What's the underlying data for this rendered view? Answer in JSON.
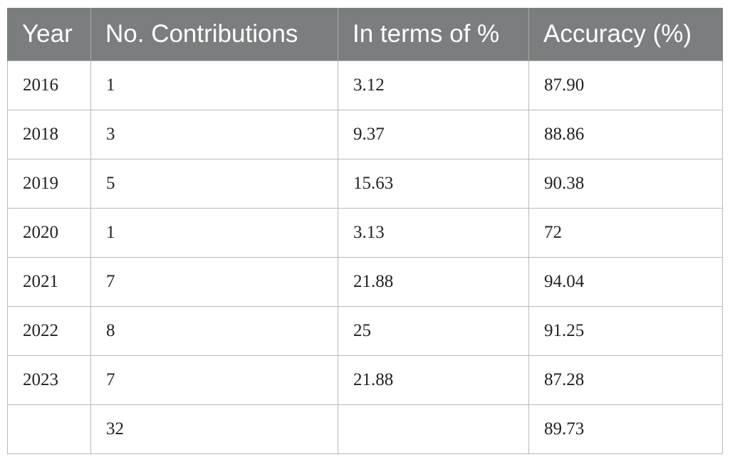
{
  "table": {
    "headers": [
      "Year",
      "No. Contributions",
      "In terms of %",
      "Accuracy (%)"
    ],
    "rows": [
      [
        "2016",
        "1",
        "3.12",
        "87.90"
      ],
      [
        "2018",
        "3",
        "9.37",
        "88.86"
      ],
      [
        "2019",
        "5",
        "15.63",
        "90.38"
      ],
      [
        "2020",
        "1",
        "3.13",
        "72"
      ],
      [
        "2021",
        "7",
        "21.88",
        "94.04"
      ],
      [
        "2022",
        "8",
        "25",
        "91.25"
      ],
      [
        "2023",
        "7",
        "21.88",
        "87.28"
      ],
      [
        "",
        "32",
        "",
        "89.73"
      ]
    ]
  },
  "colors": {
    "header_background": "#7a7e7e",
    "header_text": "#ffffff",
    "grid_line": "#b9b9b9",
    "body_text": "#222222"
  }
}
